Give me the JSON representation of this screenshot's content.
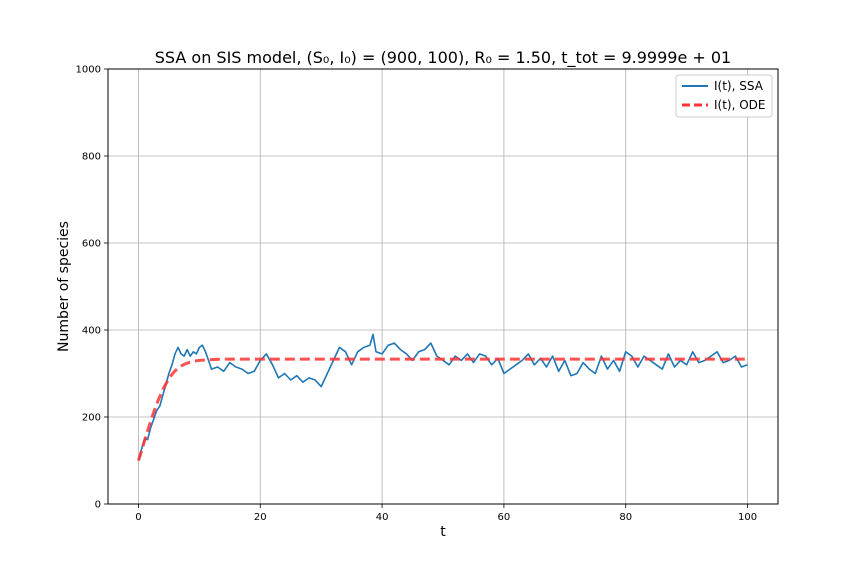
{
  "chart_data": {
    "type": "line",
    "title": "SSA on SIS model, (S₀, I₀) = (900, 100), R₀ = 1.50, t_tot = 9.9999e + 01",
    "xlabel": "t",
    "ylabel": "Number of species",
    "xlim": [
      -5,
      105
    ],
    "ylim": [
      0,
      1000
    ],
    "xticks": [
      0,
      20,
      40,
      60,
      80,
      100
    ],
    "yticks": [
      0,
      200,
      400,
      600,
      800,
      1000
    ],
    "grid": true,
    "legend_position": "top-right",
    "series": [
      {
        "name": "I(t), SSA",
        "style": "solid",
        "color": "#1f77b4",
        "x": [
          0,
          0.5,
          1,
          1.5,
          2,
          2.5,
          3,
          3.5,
          4,
          4.5,
          5,
          5.5,
          6,
          6.5,
          7,
          7.5,
          8,
          8.5,
          9,
          9.5,
          10,
          10.5,
          11,
          11.5,
          12,
          13,
          14,
          15,
          16,
          17,
          18,
          19,
          20,
          21,
          22,
          23,
          24,
          25,
          26,
          27,
          28,
          29,
          30,
          31,
          32,
          33,
          34,
          35,
          36,
          37,
          38,
          38.5,
          39,
          40,
          41,
          42,
          43,
          44,
          45,
          46,
          47,
          48,
          49,
          50,
          51,
          52,
          53,
          54,
          55,
          56,
          57,
          58,
          59,
          60,
          61,
          62,
          63,
          64,
          65,
          66,
          67,
          68,
          69,
          70,
          71,
          72,
          73,
          74,
          75,
          76,
          77,
          78,
          79,
          80,
          81,
          82,
          83,
          84,
          85,
          86,
          87,
          88,
          89,
          90,
          91,
          92,
          93,
          94,
          95,
          96,
          97,
          98,
          99,
          100
        ],
        "y": [
          100,
          125,
          150,
          148,
          175,
          195,
          215,
          225,
          250,
          275,
          300,
          320,
          345,
          360,
          345,
          340,
          355,
          340,
          350,
          345,
          360,
          365,
          350,
          330,
          310,
          315,
          305,
          325,
          315,
          310,
          300,
          305,
          330,
          345,
          320,
          290,
          300,
          285,
          295,
          280,
          290,
          285,
          270,
          300,
          330,
          360,
          350,
          320,
          350,
          360,
          365,
          390,
          350,
          345,
          365,
          370,
          355,
          345,
          330,
          350,
          355,
          370,
          340,
          330,
          320,
          340,
          330,
          345,
          325,
          345,
          340,
          320,
          335,
          300,
          310,
          320,
          330,
          345,
          320,
          335,
          315,
          340,
          305,
          330,
          295,
          300,
          325,
          310,
          300,
          340,
          310,
          330,
          305,
          350,
          340,
          315,
          340,
          330,
          320,
          310,
          345,
          315,
          330,
          320,
          350,
          325,
          330,
          340,
          350,
          325,
          330,
          340,
          315,
          320
        ]
      },
      {
        "name": "I(t), ODE",
        "style": "dashed",
        "color": "#ff3333",
        "x": [
          0,
          0.5,
          1,
          1.5,
          2,
          2.5,
          3,
          3.5,
          4,
          4.5,
          5,
          5.5,
          6,
          6.5,
          7,
          7.5,
          8,
          9,
          10,
          11,
          12,
          14,
          16,
          20,
          30,
          40,
          50,
          60,
          70,
          80,
          90,
          100
        ],
        "y": [
          100,
          122,
          145,
          168,
          190,
          211,
          230,
          247,
          263,
          276,
          288,
          298,
          306,
          312,
          317,
          321,
          324,
          328,
          330,
          331,
          332,
          333,
          333,
          333,
          333,
          333,
          333,
          333,
          333,
          333,
          333,
          333
        ]
      }
    ]
  }
}
